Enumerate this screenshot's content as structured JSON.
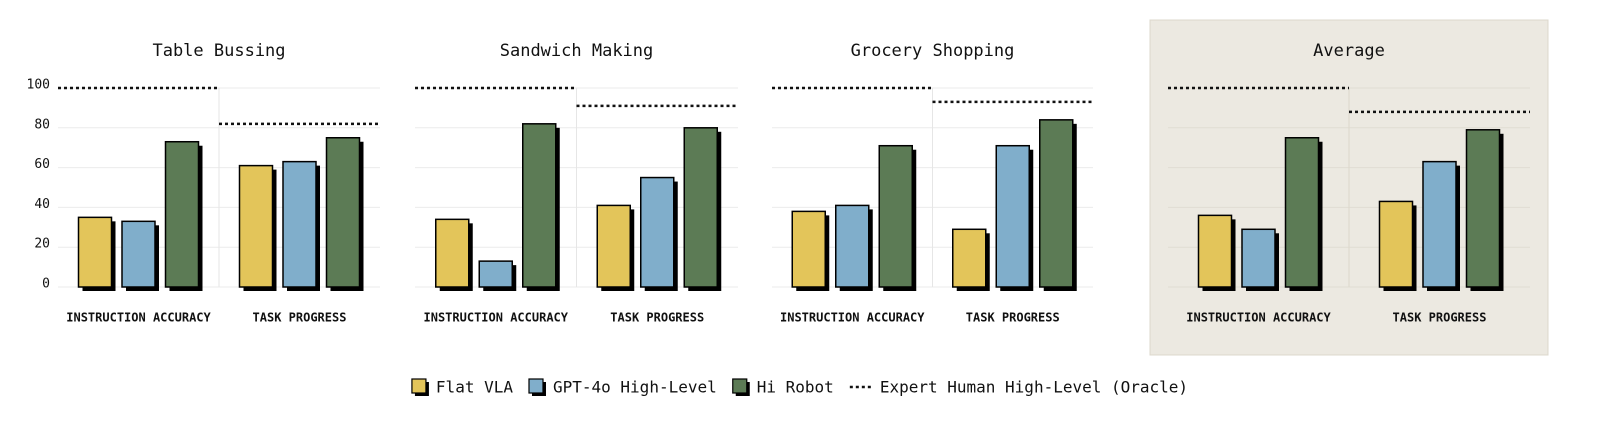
{
  "chart_data": {
    "type": "bar",
    "ylim": [
      0,
      100
    ],
    "yticks": [
      0,
      20,
      40,
      60,
      80,
      100
    ],
    "grid": true,
    "legend": [
      {
        "name": "Flat VLA",
        "color": "#e3c55a"
      },
      {
        "name": "GPT-4o High-Level",
        "color": "#80aecb"
      },
      {
        "name": "Hi Robot",
        "color": "#5c7b55"
      },
      {
        "name": "Expert Human High-Level (Oracle)",
        "style": "dotted"
      }
    ],
    "panels": [
      {
        "title": "Table Bussing",
        "categories": [
          "INSTRUCTION ACCURACY",
          "TASK PROGRESS"
        ],
        "series": [
          {
            "values": [
              35,
              61
            ]
          },
          {
            "values": [
              33,
              63
            ]
          },
          {
            "values": [
              73,
              75
            ]
          }
        ],
        "oracle": [
          100,
          82
        ]
      },
      {
        "title": "Sandwich Making",
        "categories": [
          "INSTRUCTION ACCURACY",
          "TASK PROGRESS"
        ],
        "series": [
          {
            "values": [
              34,
              41
            ]
          },
          {
            "values": [
              13,
              55
            ]
          },
          {
            "values": [
              82,
              80
            ]
          }
        ],
        "oracle": [
          100,
          91
        ]
      },
      {
        "title": "Grocery Shopping",
        "categories": [
          "INSTRUCTION ACCURACY",
          "TASK PROGRESS"
        ],
        "series": [
          {
            "values": [
              38,
              29
            ]
          },
          {
            "values": [
              41,
              71
            ]
          },
          {
            "values": [
              71,
              84
            ]
          }
        ],
        "oracle": [
          100,
          93
        ]
      },
      {
        "title": "Average",
        "categories": [
          "INSTRUCTION ACCURACY",
          "TASK PROGRESS"
        ],
        "series": [
          {
            "values": [
              36,
              43
            ]
          },
          {
            "values": [
              29,
              63
            ]
          },
          {
            "values": [
              75,
              79
            ]
          }
        ],
        "oracle": [
          100,
          88
        ],
        "background": "#ece9e1"
      }
    ]
  }
}
